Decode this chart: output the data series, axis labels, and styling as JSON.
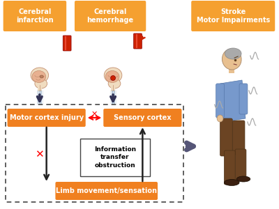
{
  "bg_color": "#ffffff",
  "orange": "#F08020",
  "orange_light": "#F5A030",
  "labels": {
    "cerebral_infarction": "Cerebral\ninfarction",
    "cerebral_hemorrhage": "Cerebral\nhemorrhage",
    "stroke_motor": "Stroke\nMotor Impairments",
    "motor_cortex": "Motor cortex injury",
    "sensory_cortex": "Sensory cortex",
    "info_transfer": "Information\ntransfer\nobstruction",
    "limb_movement": "Limb movement/sensation"
  },
  "brain_face_color": "#f2c9a0",
  "brain_edge_color": "#c49070",
  "brain_fill": "#e8b090",
  "skull_color": "#f0dcc0",
  "vessel_red": "#CC2200",
  "vessel_dark": "#880000",
  "arrow_blue": "#7799BB",
  "arrow_dark": "#222222",
  "person_skin": "#e8c090",
  "person_shirt": "#7799CC",
  "person_pants": "#6B4423",
  "person_shoe": "#3B2010",
  "person_hair": "#aaaaaa",
  "wavy_color": "#aaaaaa",
  "info_box_edge": "#444444",
  "dashed_edge": "#444444"
}
